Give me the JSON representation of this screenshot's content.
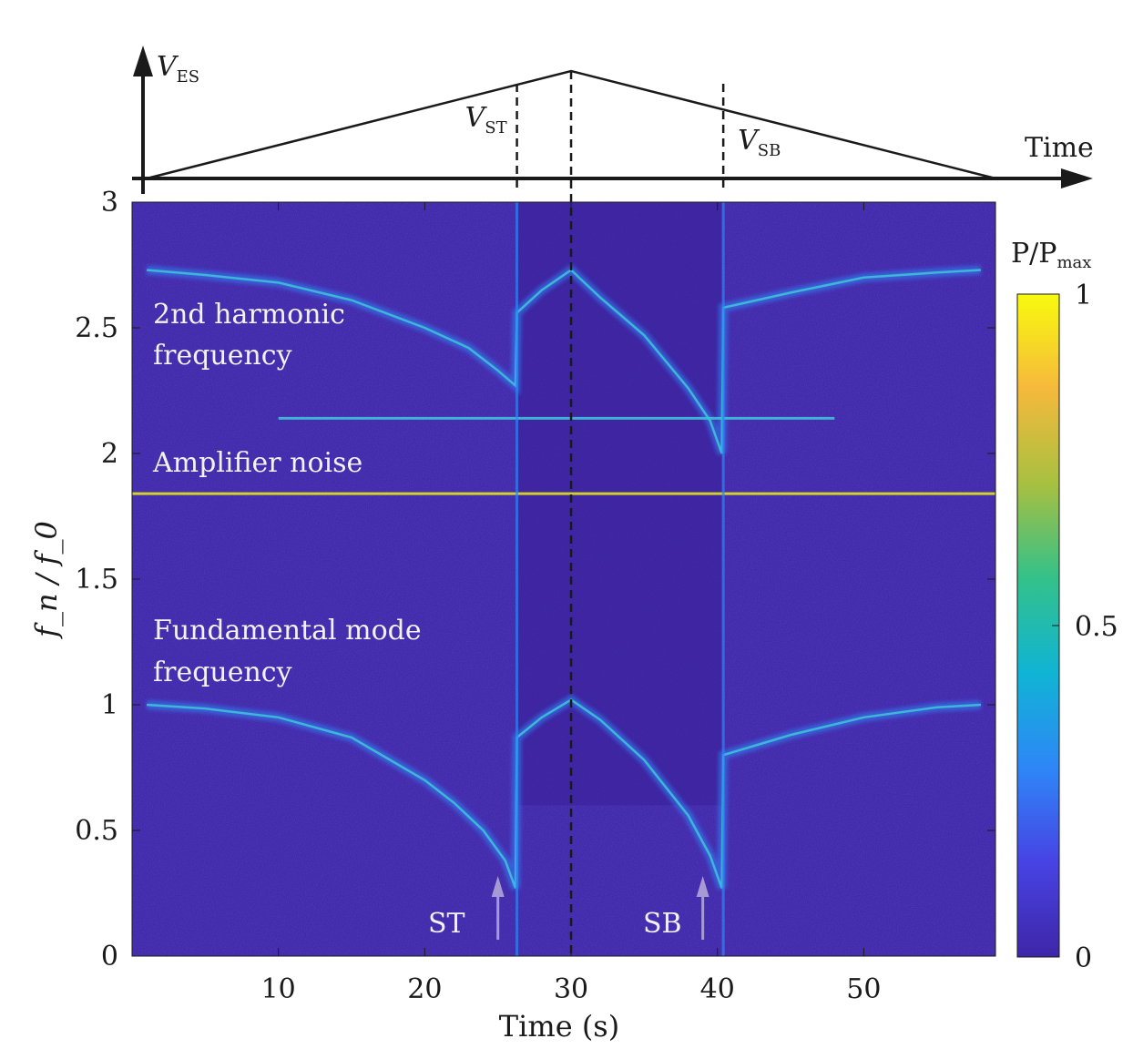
{
  "chart_data": {
    "type": "heatmap",
    "title": "",
    "xlabel": "Time (s)",
    "ylabel": "f_n / f_0",
    "xlim": [
      0,
      59
    ],
    "ylim": [
      0,
      3
    ],
    "x_ticks": [
      10,
      20,
      30,
      40,
      50
    ],
    "y_ticks": [
      0,
      0.5,
      1,
      1.5,
      2,
      2.5,
      3
    ],
    "colorbar": {
      "label": "P/P",
      "label_sub": "max",
      "ticks": [
        0,
        0.5,
        1
      ],
      "colormap": [
        "#3e26a8",
        "#4743e4",
        "#2e87f7",
        "#10b4d4",
        "#33c18a",
        "#a8c040",
        "#f5b93c",
        "#f8fa0d"
      ]
    },
    "series": [
      {
        "name": "Fundamental mode frequency",
        "x": [
          1,
          5,
          10,
          15,
          20,
          22,
          24,
          25.5,
          26.2,
          26.3,
          28,
          30,
          32,
          35,
          38,
          39.5,
          40.3,
          40.4,
          45,
          50,
          55,
          58
        ],
        "y": [
          1.0,
          0.985,
          0.95,
          0.87,
          0.7,
          0.61,
          0.5,
          0.38,
          0.27,
          0.87,
          0.95,
          1.02,
          0.94,
          0.78,
          0.56,
          0.4,
          0.27,
          0.8,
          0.88,
          0.95,
          0.99,
          1.0
        ]
      },
      {
        "name": "2nd harmonic frequency",
        "x": [
          1,
          5,
          10,
          15,
          20,
          23,
          25,
          26.2,
          26.3,
          28,
          30,
          32,
          35,
          38,
          39.5,
          40.3,
          40.4,
          45,
          50,
          55,
          58
        ],
        "y": [
          2.73,
          2.71,
          2.68,
          2.61,
          2.5,
          2.42,
          2.33,
          2.27,
          2.56,
          2.65,
          2.73,
          2.62,
          2.47,
          2.26,
          2.13,
          2.0,
          2.58,
          2.64,
          2.7,
          2.72,
          2.73
        ]
      },
      {
        "name": "Amplifier noise",
        "x": [
          0,
          59
        ],
        "y": [
          1.84,
          1.84
        ]
      },
      {
        "name": "",
        "x": [
          10,
          48
        ],
        "y": [
          2.14,
          2.14
        ]
      }
    ],
    "vertical_lines": [
      {
        "x": 26.3,
        "style": "dashed"
      },
      {
        "x": 30,
        "style": "dashed"
      },
      {
        "x": 40.4,
        "style": "dashed"
      }
    ],
    "annotations": [
      {
        "text": "2nd harmonic",
        "line2": "frequency"
      },
      {
        "text": "Amplifier noise"
      },
      {
        "text": "Fundamental mode",
        "line2": "frequency"
      },
      {
        "text": "ST",
        "arrow_x": 25
      },
      {
        "text": "SB",
        "arrow_x": 39
      }
    ],
    "voltage_profile": {
      "axis_label": "V",
      "axis_label_sub": "ES",
      "time_label": "Time",
      "x": [
        1,
        30,
        59
      ],
      "y": [
        0,
        1,
        0
      ],
      "markers": [
        {
          "label": "V",
          "sub": "ST",
          "x": 26.3
        },
        {
          "label": "V",
          "sub": "SB",
          "x": 40.4
        }
      ]
    }
  },
  "colors": {
    "background": "#3e26a8",
    "axis": "#1a1a1a",
    "annotation_text": "#f2f2f2",
    "arrow": "#a79ad4"
  }
}
